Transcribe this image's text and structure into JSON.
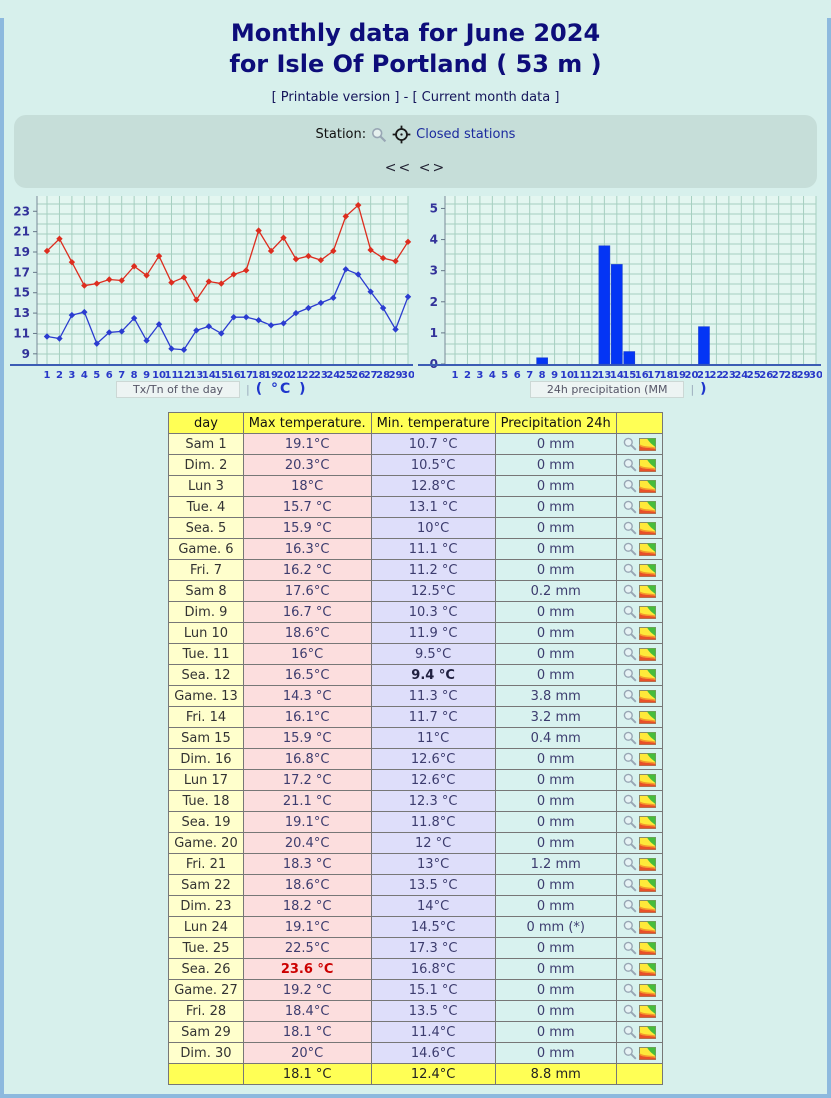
{
  "header": {
    "title_line1": "Monthly data for June 2024",
    "title_line2": "for Isle Of Portland ( 53 m )",
    "printable_link": "[ Printable version ]",
    "link_separator": "-",
    "current_month_link": "[ Current month data ]"
  },
  "station_bar": {
    "station_label": "Station:",
    "closed_stations_link": "Closed stations",
    "nav_prev": "<<",
    "nav_next": "<>"
  },
  "chart_data": [
    {
      "type": "line",
      "title": "Tx/Tn of the day",
      "unit_label": "( °C )",
      "days": [
        1,
        2,
        3,
        4,
        5,
        6,
        7,
        8,
        9,
        10,
        11,
        12,
        13,
        14,
        15,
        16,
        17,
        18,
        19,
        20,
        21,
        22,
        23,
        24,
        25,
        26,
        27,
        28,
        29,
        30
      ],
      "series": [
        {
          "name": "Max temperature (Tx)",
          "color": "#dd2d1f",
          "values": [
            19.1,
            20.3,
            18,
            15.7,
            15.9,
            16.3,
            16.2,
            17.6,
            16.7,
            18.6,
            16,
            16.5,
            14.3,
            16.1,
            15.9,
            16.8,
            17.2,
            21.1,
            19.1,
            20.4,
            18.3,
            18.6,
            18.2,
            19.1,
            22.5,
            23.6,
            19.2,
            18.4,
            18.1,
            20
          ]
        },
        {
          "name": "Min temperature (Tn)",
          "color": "#2b3cd0",
          "values": [
            10.7,
            10.5,
            12.8,
            13.1,
            10,
            11.1,
            11.2,
            12.5,
            10.3,
            11.9,
            9.5,
            9.4,
            11.3,
            11.7,
            11,
            12.6,
            12.6,
            12.3,
            11.8,
            12,
            13,
            13.5,
            14,
            14.5,
            17.3,
            16.8,
            15.1,
            13.5,
            11.4,
            14.6
          ]
        }
      ],
      "ylim": [
        8,
        24.5
      ],
      "yticks": [
        9,
        11,
        13,
        15,
        17,
        19,
        21,
        23
      ],
      "grid": true,
      "legend_position": "none"
    },
    {
      "type": "bar",
      "title": "24h precipitation (MM",
      "unit_label": ")",
      "days": [
        1,
        2,
        3,
        4,
        5,
        6,
        7,
        8,
        9,
        10,
        11,
        12,
        13,
        14,
        15,
        16,
        17,
        18,
        19,
        20,
        21,
        22,
        23,
        24,
        25,
        26,
        27,
        28,
        29,
        30
      ],
      "values": [
        0,
        0,
        0,
        0,
        0,
        0,
        0,
        0.2,
        0,
        0,
        0,
        0,
        3.8,
        3.2,
        0.4,
        0,
        0,
        0,
        0,
        0,
        1.2,
        0,
        0,
        0,
        0,
        0,
        0,
        0,
        0,
        0
      ],
      "ylim": [
        0,
        5.4
      ],
      "yticks": [
        0,
        1,
        2,
        3,
        4,
        5
      ],
      "bar_color": "#0435f5",
      "grid": true,
      "legend_position": "none"
    }
  ],
  "table": {
    "headers": [
      "day",
      "Max temperature.",
      "Min. temperature",
      "Precipitation 24h",
      ""
    ],
    "rows": [
      {
        "day": "Sam 1",
        "max": "19.1°C",
        "min": "10.7 °C",
        "precip": "0 mm"
      },
      {
        "day": "Dim. 2",
        "max": "20.3°C",
        "min": "10.5°C",
        "precip": "0 mm"
      },
      {
        "day": "Lun 3",
        "max": "18°C",
        "min": "12.8°C",
        "precip": "0 mm"
      },
      {
        "day": "Tue. 4",
        "max": "15.7 °C",
        "min": "13.1 °C",
        "precip": "0 mm"
      },
      {
        "day": "Sea. 5",
        "max": "15.9 °C",
        "min": "10°C",
        "precip": "0 mm"
      },
      {
        "day": "Game. 6",
        "max": "16.3°C",
        "min": "11.1 °C",
        "precip": "0 mm"
      },
      {
        "day": "Fri. 7",
        "max": "16.2 °C",
        "min": "11.2 °C",
        "precip": "0 mm"
      },
      {
        "day": "Sam 8",
        "max": "17.6°C",
        "min": "12.5°C",
        "precip": "0.2 mm"
      },
      {
        "day": "Dim. 9",
        "max": "16.7 °C",
        "min": "10.3 °C",
        "precip": "0 mm"
      },
      {
        "day": "Lun 10",
        "max": "18.6°C",
        "min": "11.9 °C",
        "precip": "0 mm"
      },
      {
        "day": "Tue. 11",
        "max": "16°C",
        "min": "9.5°C",
        "precip": "0 mm"
      },
      {
        "day": "Sea. 12",
        "max": "16.5°C",
        "min": "9.4 °C",
        "precip": "0 mm",
        "min_bold": true
      },
      {
        "day": "Game. 13",
        "max": "14.3 °C",
        "min": "11.3 °C",
        "precip": "3.8 mm"
      },
      {
        "day": "Fri. 14",
        "max": "16.1°C",
        "min": "11.7 °C",
        "precip": "3.2 mm"
      },
      {
        "day": "Sam 15",
        "max": "15.9 °C",
        "min": "11°C",
        "precip": "0.4 mm"
      },
      {
        "day": "Dim. 16",
        "max": "16.8°C",
        "min": "12.6°C",
        "precip": "0 mm"
      },
      {
        "day": "Lun 17",
        "max": "17.2 °C",
        "min": "12.6°C",
        "precip": "0 mm"
      },
      {
        "day": "Tue. 18",
        "max": "21.1 °C",
        "min": "12.3 °C",
        "precip": "0 mm"
      },
      {
        "day": "Sea. 19",
        "max": "19.1°C",
        "min": "11.8°C",
        "precip": "0 mm"
      },
      {
        "day": "Game. 20",
        "max": "20.4°C",
        "min": "12 °C",
        "precip": "0 mm"
      },
      {
        "day": "Fri. 21",
        "max": "18.3 °C",
        "min": "13°C",
        "precip": "1.2 mm"
      },
      {
        "day": "Sam 22",
        "max": "18.6°C",
        "min": "13.5 °C",
        "precip": "0 mm"
      },
      {
        "day": "Dim. 23",
        "max": "18.2 °C",
        "min": "14°C",
        "precip": "0 mm"
      },
      {
        "day": "Lun 24",
        "max": "19.1°C",
        "min": "14.5°C",
        "precip": "0 mm (*)"
      },
      {
        "day": "Tue. 25",
        "max": "22.5°C",
        "min": "17.3 °C",
        "precip": "0 mm"
      },
      {
        "day": "Sea. 26",
        "max": "23.6 °C",
        "min": "16.8°C",
        "precip": "0 mm",
        "max_record": true
      },
      {
        "day": "Game. 27",
        "max": "19.2 °C",
        "min": "15.1 °C",
        "precip": "0 mm"
      },
      {
        "day": "Fri. 28",
        "max": "18.4°C",
        "min": "13.5 °C",
        "precip": "0 mm"
      },
      {
        "day": "Sam 29",
        "max": "18.1 °C",
        "min": "11.4°C",
        "precip": "0 mm"
      },
      {
        "day": "Dim. 30",
        "max": "20°C",
        "min": "14.6°C",
        "precip": "0 mm"
      }
    ],
    "summary": {
      "day": "",
      "max": "18.1 °C",
      "min": "12.4°C",
      "precip": "8.8 mm"
    }
  },
  "colors": {
    "page_background": "#d7f0ec",
    "page_border": "#8db9de",
    "title_navy": "#0d0d7a",
    "link_blue": "#1b2a9e",
    "chart_grid": "#a6cfc0",
    "chart_axis": "#3c5cb4",
    "line_red": "#dd2d1f",
    "line_blue": "#2b3cd0",
    "bar_blue": "#0435f5",
    "header_yellow": "#ffff55",
    "day_col": "#ffffcc",
    "max_col": "#fcdede",
    "min_col": "#dedefa",
    "precip_col": "#d8f2ef",
    "record_red": "#cc0000"
  }
}
